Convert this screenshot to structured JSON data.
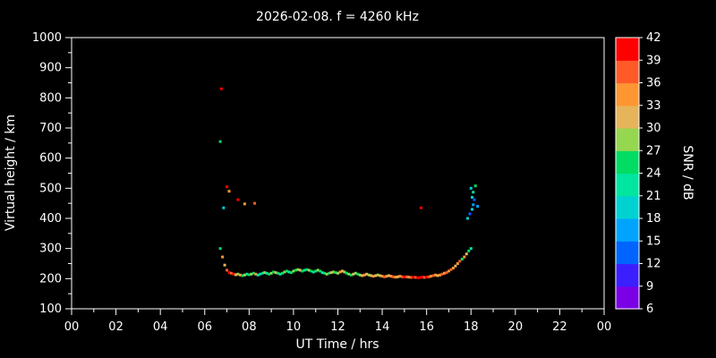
{
  "title": "2026-02-08. f = 4260 kHz",
  "axes": {
    "xlabel": "UT Time / hrs",
    "ylabel": "Virtual height / km",
    "x_tick_values": [
      0,
      2,
      4,
      6,
      8,
      10,
      12,
      14,
      16,
      18,
      20,
      22,
      24
    ],
    "x_tick_labels": [
      "00",
      "02",
      "04",
      "06",
      "08",
      "10",
      "12",
      "14",
      "16",
      "18",
      "20",
      "22",
      "00"
    ],
    "x_minor_values": [
      1,
      3,
      5,
      7,
      9,
      11,
      13,
      15,
      17,
      19,
      21,
      23
    ],
    "y_tick_values": [
      100,
      200,
      300,
      400,
      500,
      600,
      700,
      800,
      900,
      1000
    ],
    "y_minor_values": [
      150,
      250,
      350,
      450,
      550,
      650,
      750,
      850,
      950
    ],
    "x_range": [
      0,
      24
    ],
    "y_range": [
      100,
      1000
    ]
  },
  "colorbar": {
    "label": "SNR / dB",
    "tick_values": [
      6,
      9,
      12,
      15,
      18,
      21,
      24,
      27,
      30,
      33,
      36,
      39,
      42
    ],
    "range": [
      6,
      42
    ],
    "colors_bottom_to_top": [
      "#7a00e6",
      "#3c1fff",
      "#0064ff",
      "#00a4ff",
      "#00d2d2",
      "#00e6a0",
      "#00dc64",
      "#96d750",
      "#e6b45a",
      "#ff9632",
      "#ff5a28",
      "#ff0000"
    ]
  },
  "chart_data": {
    "type": "scatter",
    "title": "2026-02-08. f = 4260 kHz",
    "xlabel": "UT Time / hrs",
    "ylabel": "Virtual height / km",
    "x_range": [
      0,
      24
    ],
    "y_range": [
      100,
      1000
    ],
    "snr_range": [
      6,
      42
    ],
    "grid": false,
    "points_format": [
      "ut_hours",
      "virtual_height_km",
      "snr_db"
    ],
    "points": [
      [
        6.7,
        655,
        24
      ],
      [
        6.75,
        830,
        39
      ],
      [
        6.85,
        435,
        18
      ],
      [
        7.0,
        505,
        42
      ],
      [
        7.1,
        490,
        33
      ],
      [
        7.5,
        462,
        39
      ],
      [
        7.8,
        448,
        33
      ],
      [
        8.25,
        450,
        36
      ],
      [
        15.75,
        435,
        42
      ],
      [
        17.85,
        400,
        18
      ],
      [
        17.95,
        415,
        12
      ],
      [
        18.0,
        500,
        18
      ],
      [
        18.05,
        430,
        18
      ],
      [
        18.05,
        470,
        18
      ],
      [
        18.1,
        445,
        15
      ],
      [
        18.1,
        487,
        21
      ],
      [
        18.15,
        462,
        12
      ],
      [
        18.2,
        508,
        24
      ],
      [
        18.3,
        440,
        15
      ],
      [
        6.7,
        300,
        24
      ],
      [
        6.8,
        272,
        33
      ],
      [
        6.9,
        245,
        30
      ],
      [
        7.0,
        228,
        36
      ],
      [
        7.1,
        220,
        39
      ],
      [
        7.2,
        218,
        36
      ],
      [
        7.3,
        215,
        39
      ],
      [
        7.4,
        213,
        30
      ],
      [
        7.5,
        215,
        27
      ],
      [
        7.6,
        212,
        33
      ],
      [
        7.7,
        210,
        24
      ],
      [
        7.8,
        212,
        27
      ],
      [
        7.9,
        215,
        21
      ],
      [
        8.0,
        213,
        24
      ],
      [
        8.1,
        215,
        27
      ],
      [
        8.2,
        218,
        24
      ],
      [
        8.3,
        215,
        33
      ],
      [
        8.4,
        212,
        21
      ],
      [
        8.5,
        215,
        18
      ],
      [
        8.6,
        218,
        24
      ],
      [
        8.7,
        220,
        27
      ],
      [
        8.8,
        218,
        21
      ],
      [
        8.9,
        215,
        24
      ],
      [
        9.0,
        218,
        27
      ],
      [
        9.1,
        222,
        24
      ],
      [
        9.2,
        220,
        30
      ],
      [
        9.3,
        218,
        24
      ],
      [
        9.4,
        215,
        21
      ],
      [
        9.5,
        218,
        24
      ],
      [
        9.6,
        222,
        27
      ],
      [
        9.7,
        225,
        24
      ],
      [
        9.8,
        222,
        21
      ],
      [
        9.9,
        220,
        24
      ],
      [
        10.0,
        225,
        27
      ],
      [
        10.1,
        228,
        24
      ],
      [
        10.2,
        230,
        27
      ],
      [
        10.3,
        228,
        30
      ],
      [
        10.4,
        225,
        24
      ],
      [
        10.5,
        228,
        21
      ],
      [
        10.6,
        230,
        24
      ],
      [
        10.7,
        228,
        27
      ],
      [
        10.8,
        225,
        24
      ],
      [
        10.9,
        222,
        21
      ],
      [
        11.0,
        225,
        24
      ],
      [
        11.1,
        228,
        27
      ],
      [
        11.2,
        225,
        24
      ],
      [
        11.3,
        220,
        21
      ],
      [
        11.4,
        218,
        24
      ],
      [
        11.5,
        215,
        27
      ],
      [
        11.6,
        218,
        24
      ],
      [
        11.7,
        220,
        30
      ],
      [
        11.8,
        222,
        27
      ],
      [
        11.9,
        220,
        24
      ],
      [
        12.0,
        218,
        27
      ],
      [
        12.1,
        222,
        33
      ],
      [
        12.2,
        225,
        30
      ],
      [
        12.3,
        222,
        27
      ],
      [
        12.4,
        218,
        24
      ],
      [
        12.5,
        215,
        27
      ],
      [
        12.6,
        212,
        24
      ],
      [
        12.7,
        215,
        30
      ],
      [
        12.8,
        218,
        27
      ],
      [
        12.9,
        215,
        24
      ],
      [
        13.0,
        212,
        27
      ],
      [
        13.1,
        210,
        30
      ],
      [
        13.2,
        212,
        33
      ],
      [
        13.3,
        215,
        30
      ],
      [
        13.4,
        212,
        27
      ],
      [
        13.5,
        210,
        30
      ],
      [
        13.6,
        208,
        33
      ],
      [
        13.7,
        210,
        30
      ],
      [
        13.8,
        212,
        27
      ],
      [
        13.9,
        210,
        30
      ],
      [
        14.0,
        208,
        33
      ],
      [
        14.1,
        206,
        36
      ],
      [
        14.2,
        208,
        33
      ],
      [
        14.3,
        210,
        30
      ],
      [
        14.4,
        208,
        33
      ],
      [
        14.5,
        206,
        36
      ],
      [
        14.6,
        205,
        33
      ],
      [
        14.7,
        206,
        30
      ],
      [
        14.8,
        208,
        33
      ],
      [
        14.9,
        206,
        36
      ],
      [
        15.0,
        205,
        39
      ],
      [
        15.1,
        206,
        36
      ],
      [
        15.2,
        205,
        33
      ],
      [
        15.3,
        204,
        36
      ],
      [
        15.4,
        205,
        39
      ],
      [
        15.5,
        204,
        36
      ],
      [
        15.6,
        203,
        39
      ],
      [
        15.7,
        204,
        42
      ],
      [
        15.8,
        205,
        39
      ],
      [
        15.9,
        204,
        36
      ],
      [
        16.0,
        205,
        39
      ],
      [
        16.1,
        206,
        36
      ],
      [
        16.2,
        208,
        33
      ],
      [
        16.3,
        210,
        36
      ],
      [
        16.4,
        212,
        33
      ],
      [
        16.5,
        210,
        30
      ],
      [
        16.6,
        212,
        33
      ],
      [
        16.7,
        215,
        36
      ],
      [
        16.8,
        218,
        33
      ],
      [
        16.9,
        220,
        36
      ],
      [
        17.0,
        225,
        33
      ],
      [
        17.1,
        230,
        36
      ],
      [
        17.2,
        235,
        33
      ],
      [
        17.3,
        242,
        30
      ],
      [
        17.4,
        250,
        33
      ],
      [
        17.5,
        258,
        36
      ],
      [
        17.6,
        265,
        24
      ],
      [
        17.7,
        272,
        33
      ],
      [
        17.8,
        282,
        30
      ],
      [
        17.9,
        292,
        24
      ],
      [
        18.0,
        300,
        21
      ]
    ]
  }
}
